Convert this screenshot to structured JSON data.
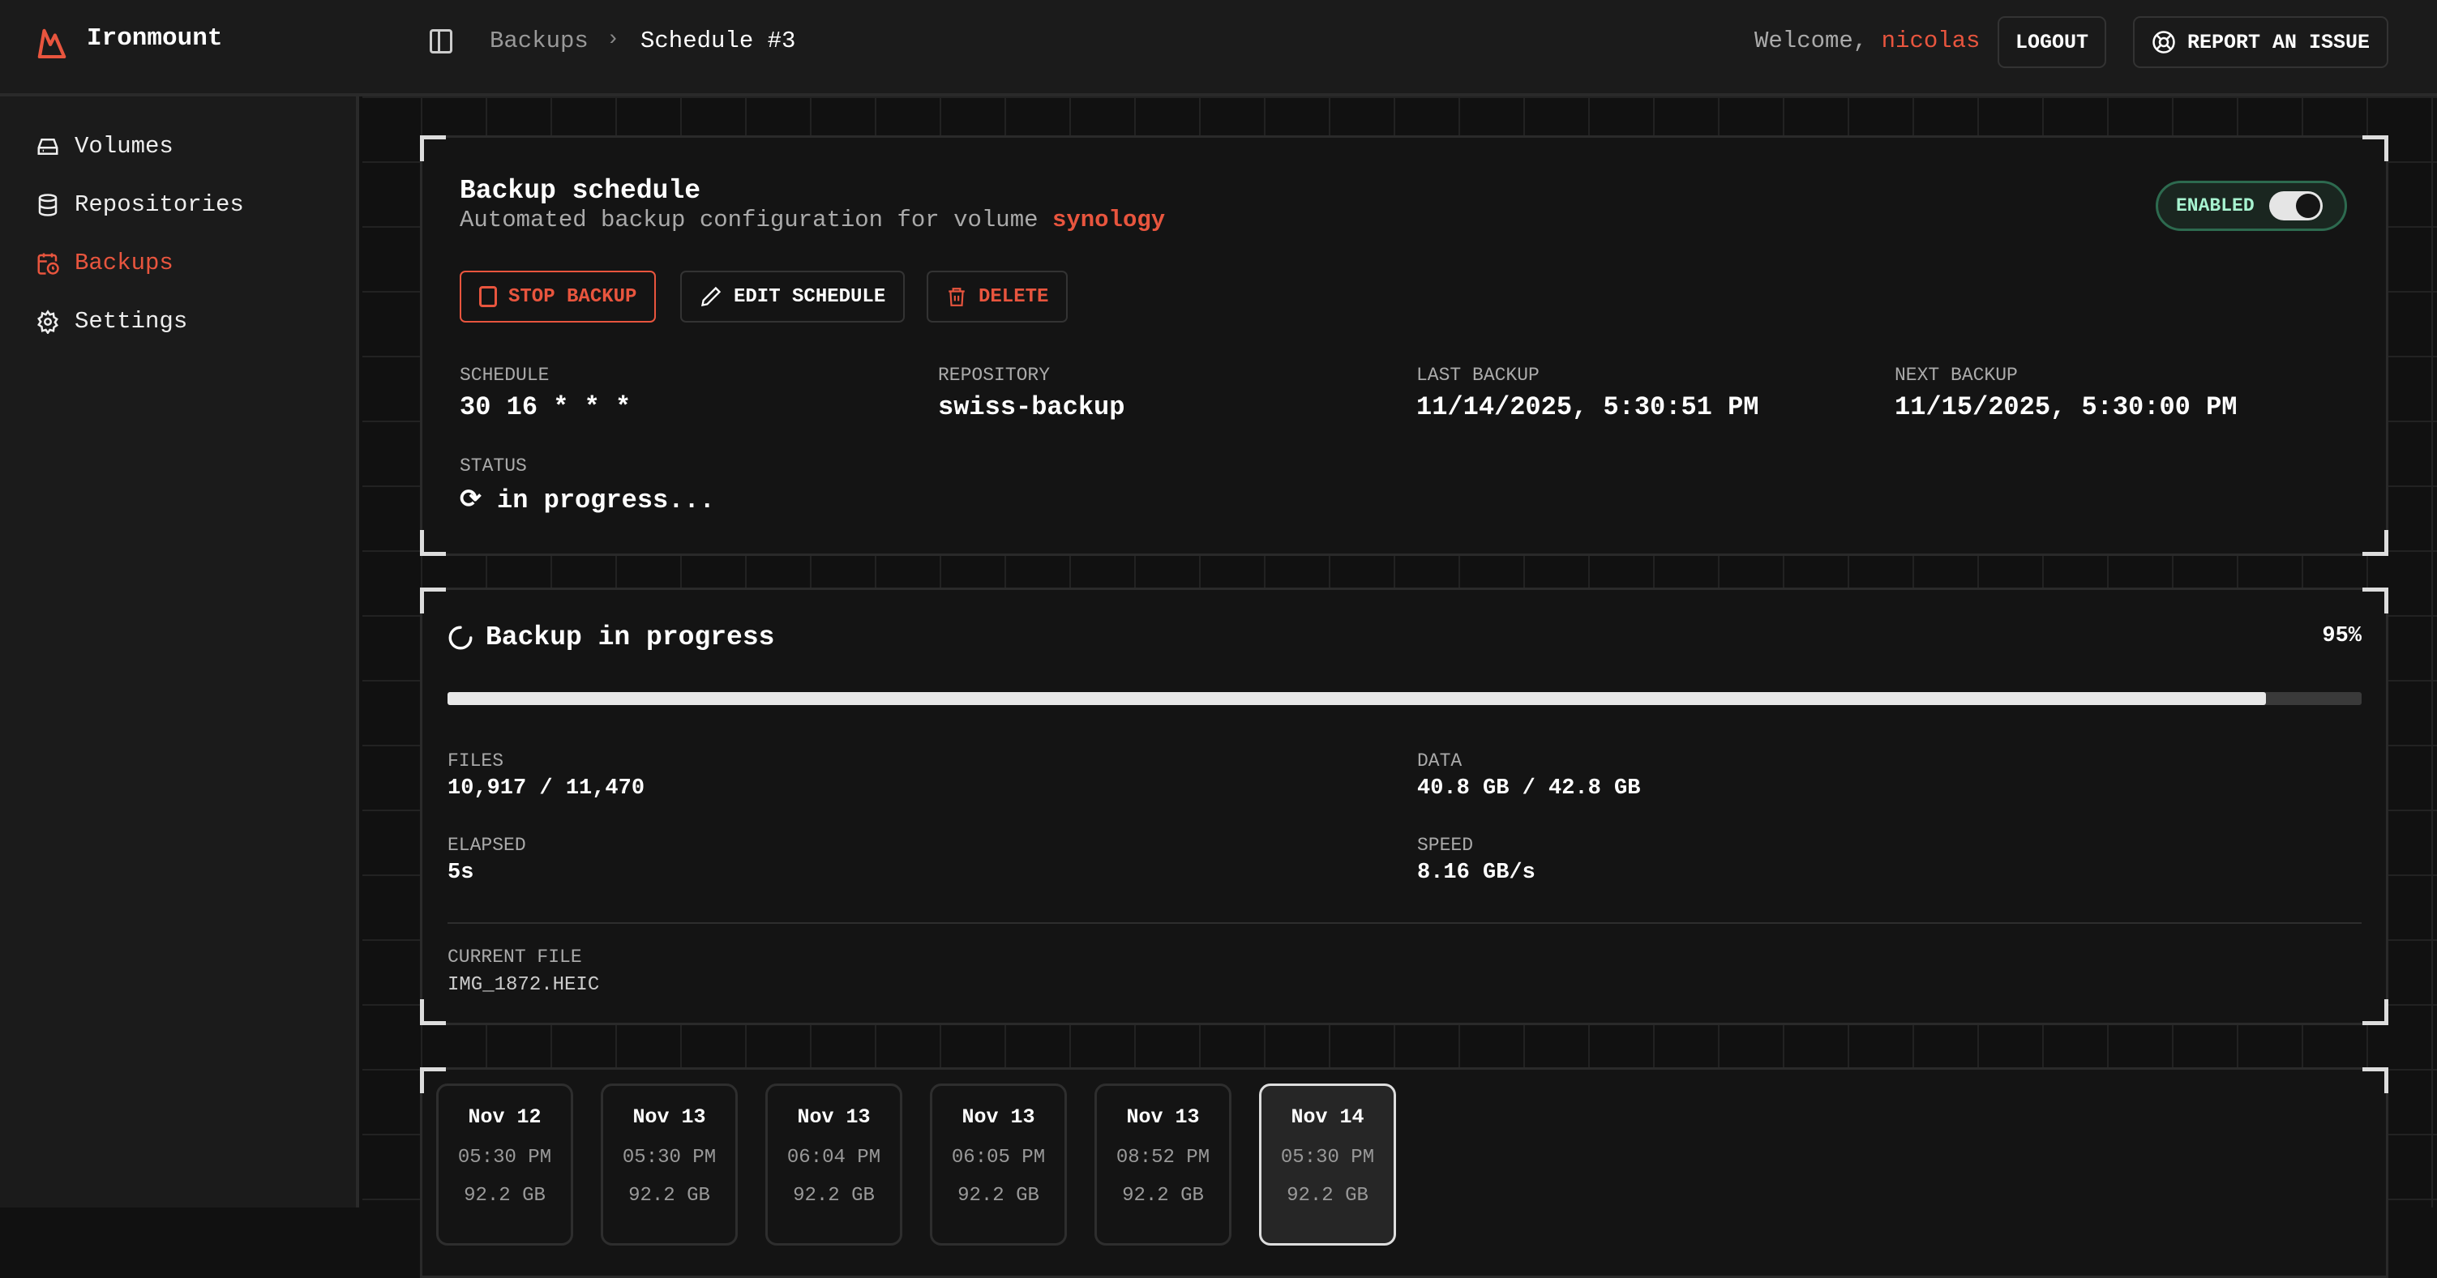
{
  "app": {
    "name": "Ironmount",
    "accent": "#e8553e"
  },
  "header": {
    "breadcrumb": [
      "Backups",
      "Schedule #3"
    ],
    "welcome": "Welcome,",
    "user": "nicolas",
    "logout": "LOGOUT",
    "report": "REPORT AN ISSUE"
  },
  "sidebar": {
    "items": [
      {
        "label": "Volumes",
        "icon": "hard-drive-icon"
      },
      {
        "label": "Repositories",
        "icon": "database-icon"
      },
      {
        "label": "Backups",
        "icon": "calendar-clock-icon",
        "active": true
      },
      {
        "label": "Settings",
        "icon": "gear-icon"
      }
    ]
  },
  "schedule": {
    "title": "Backup schedule",
    "subtitle": "Automated backup configuration for volume",
    "volume": "synology",
    "enabled_label": "ENABLED",
    "enabled": true,
    "buttons": {
      "stop": "STOP BACKUP",
      "edit": "EDIT SCHEDULE",
      "delete": "DELETE"
    },
    "fields": [
      {
        "label": "SCHEDULE",
        "value": "30 16 * * *"
      },
      {
        "label": "REPOSITORY",
        "value": "swiss-backup"
      },
      {
        "label": "LAST BACKUP",
        "value": "11/14/2025, 5:30:51 PM"
      },
      {
        "label": "NEXT BACKUP",
        "value": "11/15/2025, 5:30:00 PM"
      }
    ],
    "status_label": "STATUS",
    "status_value": "⟳ in progress..."
  },
  "progress": {
    "title": "Backup in progress",
    "percent_label": "95%",
    "percent": 95,
    "files_label": "FILES",
    "files": "10,917 / 11,470",
    "data_label": "DATA",
    "data": "40.8 GB / 42.8 GB",
    "elapsed_label": "ELAPSED",
    "elapsed": "5s",
    "speed_label": "SPEED",
    "speed": "8.16 GB/s",
    "current_file_label": "CURRENT FILE",
    "current_file": "IMG_1872.HEIC"
  },
  "snapshots": [
    {
      "date": "Nov 12",
      "time": "05:30 PM",
      "size": "92.2 GB"
    },
    {
      "date": "Nov 13",
      "time": "05:30 PM",
      "size": "92.2 GB"
    },
    {
      "date": "Nov 13",
      "time": "06:04 PM",
      "size": "92.2 GB"
    },
    {
      "date": "Nov 13",
      "time": "06:05 PM",
      "size": "92.2 GB"
    },
    {
      "date": "Nov 13",
      "time": "08:52 PM",
      "size": "92.2 GB"
    },
    {
      "date": "Nov 14",
      "time": "05:30 PM",
      "size": "92.2 GB",
      "selected": true
    }
  ]
}
